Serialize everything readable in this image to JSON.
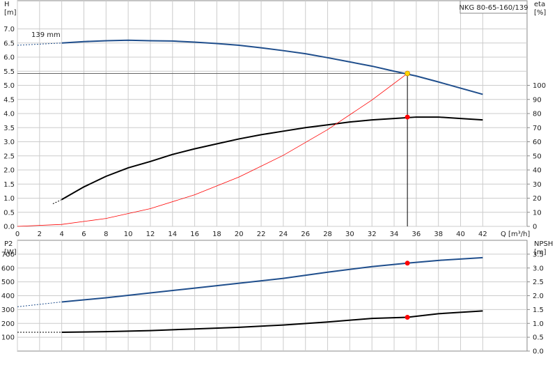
{
  "chart_data": [
    {
      "type": "line",
      "title": "NKG 80-65-160/139",
      "ylabel": [
        "H",
        "[m]"
      ],
      "y2label": [
        "eta",
        "[%]"
      ],
      "xlabel": "Q [m³/h]",
      "annotation": "139 mm",
      "xlim": [
        0,
        46
      ],
      "ylim": [
        0,
        8
      ],
      "y2lim": [
        0,
        160
      ],
      "grid": true,
      "show_xtick_labels": true,
      "xticks": [
        0,
        2,
        4,
        6,
        8,
        10,
        12,
        14,
        16,
        18,
        20,
        22,
        24,
        26,
        28,
        30,
        32,
        34,
        36,
        38,
        40,
        42
      ],
      "yticks": [
        {
          "value": 0,
          "label": "0.0"
        },
        0.5,
        {
          "value": 1,
          "label": "1.0"
        },
        1.5,
        {
          "value": 2,
          "label": "2.0"
        },
        2.5,
        {
          "value": 3,
          "label": "3.0"
        },
        3.5,
        {
          "value": 4,
          "label": "4.0"
        },
        4.5,
        {
          "value": 5,
          "label": "5.0"
        },
        5.5,
        {
          "value": 6,
          "label": "6.0"
        },
        6.5,
        {
          "value": 7,
          "label": "7.0"
        }
      ],
      "y2ticks": [
        0,
        10,
        20,
        30,
        40,
        50,
        60,
        70,
        80,
        90,
        100
      ],
      "series": [
        {
          "color": "#1f4e8c",
          "axis": "y",
          "dashed": true,
          "line_width": 1,
          "x": [
            0,
            4
          ],
          "values": [
            6.42,
            6.5
          ]
        },
        {
          "color": "#1f4e8c",
          "axis": "y",
          "dashed": false,
          "line_width": 2,
          "x": [
            4,
            6,
            8,
            10,
            12,
            14,
            16,
            18,
            20,
            22,
            24,
            26,
            28,
            30,
            32,
            34,
            36,
            38,
            40,
            42
          ],
          "values": [
            6.5,
            6.55,
            6.58,
            6.6,
            6.58,
            6.57,
            6.53,
            6.48,
            6.42,
            6.33,
            6.23,
            6.12,
            5.98,
            5.83,
            5.68,
            5.5,
            5.33,
            5.12,
            4.9,
            4.68
          ]
        },
        {
          "color": "#000000",
          "axis": "y2",
          "dashed": true,
          "line_width": 1,
          "x": [
            3.2,
            4
          ],
          "values": [
            16,
            19
          ]
        },
        {
          "color": "#000000",
          "axis": "y2",
          "dashed": false,
          "line_width": 2,
          "x": [
            4,
            6,
            8,
            10,
            12,
            14,
            16,
            18,
            20,
            22,
            24,
            26,
            28,
            30,
            32,
            34,
            36,
            38,
            40,
            42
          ],
          "values": [
            19,
            28,
            35.5,
            41.5,
            46,
            51,
            55,
            58.5,
            62,
            65,
            67.5,
            70,
            72,
            74,
            75.5,
            76.5,
            77.5,
            77.5,
            76.5,
            75.5
          ]
        },
        {
          "color": "#ff0000",
          "axis": "y",
          "dashed": false,
          "line_width": 0.8,
          "x": [
            0,
            4,
            8,
            12,
            16,
            20,
            24,
            28,
            32,
            35.2
          ],
          "values": [
            0,
            0.07,
            0.28,
            0.63,
            1.12,
            1.75,
            2.52,
            3.43,
            4.48,
            5.42
          ]
        }
      ],
      "operating_point": {
        "x": 35.2,
        "y": 5.42,
        "y2": 77.5,
        "color": "#ffd700",
        "color2": "#ff0000"
      }
    },
    {
      "type": "line",
      "ylabel": [
        "P2",
        "[W]"
      ],
      "y2label": [
        "NPSH",
        "[m]"
      ],
      "xlim": [
        0,
        46
      ],
      "ylim": [
        0,
        800
      ],
      "y2lim": [
        0,
        4
      ],
      "grid": true,
      "show_xtick_labels": false,
      "xticks": [
        0,
        2,
        4,
        6,
        8,
        10,
        12,
        14,
        16,
        18,
        20,
        22,
        24,
        26,
        28,
        30,
        32,
        34,
        36,
        38,
        40,
        42
      ],
      "yticks": [
        100,
        200,
        300,
        400,
        500,
        600,
        700
      ],
      "y2ticks": [
        {
          "value": 0,
          "label": "0.0"
        },
        0.5,
        {
          "value": 1,
          "label": "1.0"
        },
        1.5,
        {
          "value": 2,
          "label": "2.0"
        },
        2.5,
        {
          "value": 3,
          "label": "3.0"
        },
        3.5
      ],
      "series": [
        {
          "color": "#1f4e8c",
          "axis": "y",
          "dashed": true,
          "line_width": 1,
          "x": [
            0,
            4
          ],
          "values": [
            320,
            355
          ]
        },
        {
          "color": "#1f4e8c",
          "axis": "y",
          "dashed": false,
          "line_width": 2,
          "x": [
            4,
            8,
            12,
            16,
            20,
            24,
            28,
            32,
            35.2,
            38,
            42
          ],
          "values": [
            355,
            385,
            420,
            455,
            490,
            525,
            570,
            610,
            635,
            655,
            675
          ]
        },
        {
          "color": "#000000",
          "axis": "y2",
          "dashed": true,
          "line_width": 1,
          "x": [
            0,
            4
          ],
          "values": [
            0.68,
            0.68
          ]
        },
        {
          "color": "#000000",
          "axis": "y2",
          "dashed": false,
          "line_width": 2,
          "x": [
            4,
            8,
            12,
            16,
            20,
            24,
            28,
            32,
            35.2,
            38,
            42
          ],
          "values": [
            0.68,
            0.7,
            0.74,
            0.8,
            0.86,
            0.94,
            1.05,
            1.18,
            1.22,
            1.35,
            1.45
          ]
        }
      ],
      "operating_point": {
        "x": 35.2,
        "y": 635,
        "y2": 1.22,
        "color": "#ff0000",
        "color2": "#ff0000"
      }
    }
  ]
}
